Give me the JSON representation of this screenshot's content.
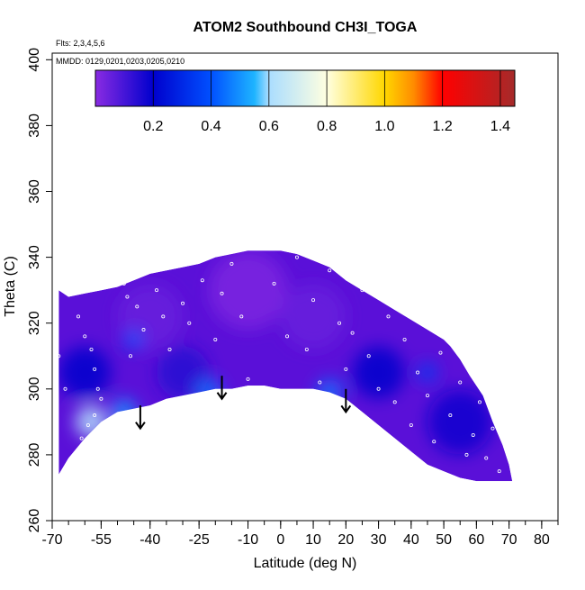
{
  "chart_data": {
    "type": "heatmap",
    "title": "ATOM2 Southbound CH3I_TOGA",
    "annotations": [
      "Flts: 2,3,4,5,6",
      "MMDD: 0129,0201,0203,0205,0210"
    ],
    "xlabel": "Latitude (deg N)",
    "ylabel": "Theta (C)",
    "xlim": [
      -70,
      85
    ],
    "ylim": [
      260,
      402
    ],
    "x_ticks": [
      -70,
      -55,
      -40,
      -25,
      -10,
      0,
      10,
      20,
      30,
      40,
      50,
      60,
      70,
      80
    ],
    "y_ticks": [
      260,
      280,
      300,
      320,
      340,
      360,
      380,
      400
    ],
    "colorbar": {
      "ticks": [
        0.2,
        0.4,
        0.6,
        0.8,
        1.0,
        1.2,
        1.4
      ],
      "tick_labels": [
        "0.2",
        "0.4",
        "0.6",
        "0.8",
        "1.0",
        "1.2",
        "1.4"
      ],
      "range": [
        0.0,
        1.45
      ],
      "stops": [
        {
          "v": 0.0,
          "color": "#8a2be2"
        },
        {
          "v": 0.2,
          "color": "#0000cd"
        },
        {
          "v": 0.4,
          "color": "#0050ff"
        },
        {
          "v": 0.55,
          "color": "#1eb4ff"
        },
        {
          "v": 0.6,
          "color": "#aaddff"
        },
        {
          "v": 0.8,
          "color": "#ffffe0"
        },
        {
          "v": 1.0,
          "color": "#ffd700"
        },
        {
          "v": 1.1,
          "color": "#ff8c00"
        },
        {
          "v": 1.2,
          "color": "#ff0000"
        },
        {
          "v": 1.45,
          "color": "#a52a2a"
        }
      ]
    },
    "field_outline": [
      [
        -68,
        274
      ],
      [
        -65,
        279
      ],
      [
        -60,
        285
      ],
      [
        -55,
        290
      ],
      [
        -50,
        293
      ],
      [
        -45,
        294
      ],
      [
        -40,
        295
      ],
      [
        -35,
        297
      ],
      [
        -30,
        298
      ],
      [
        -25,
        299
      ],
      [
        -20,
        300
      ],
      [
        -15,
        300
      ],
      [
        -10,
        301
      ],
      [
        -5,
        301
      ],
      [
        0,
        300
      ],
      [
        5,
        300
      ],
      [
        10,
        300
      ],
      [
        15,
        299
      ],
      [
        20,
        297
      ],
      [
        25,
        293
      ],
      [
        30,
        289
      ],
      [
        35,
        285
      ],
      [
        40,
        281
      ],
      [
        45,
        277
      ],
      [
        50,
        275
      ],
      [
        55,
        273
      ],
      [
        60,
        272
      ],
      [
        65,
        272
      ],
      [
        71,
        272
      ],
      [
        70,
        277
      ],
      [
        68,
        283
      ],
      [
        65,
        290
      ],
      [
        62,
        298
      ],
      [
        58,
        304
      ],
      [
        55,
        309
      ],
      [
        52,
        313
      ],
      [
        50,
        315
      ],
      [
        45,
        318
      ],
      [
        40,
        321
      ],
      [
        35,
        324
      ],
      [
        30,
        327
      ],
      [
        25,
        330
      ],
      [
        20,
        333
      ],
      [
        15,
        337
      ],
      [
        10,
        339
      ],
      [
        5,
        341
      ],
      [
        0,
        342
      ],
      [
        -5,
        342
      ],
      [
        -10,
        342
      ],
      [
        -15,
        341
      ],
      [
        -20,
        340
      ],
      [
        -25,
        338
      ],
      [
        -30,
        337
      ],
      [
        -35,
        336
      ],
      [
        -40,
        335
      ],
      [
        -45,
        333
      ],
      [
        -50,
        331
      ],
      [
        -55,
        330
      ],
      [
        -60,
        329
      ],
      [
        -65,
        328
      ],
      [
        -68,
        330
      ]
    ],
    "value_blobs": [
      {
        "lat": -40,
        "theta": 322,
        "v": 0.05,
        "r": 10
      },
      {
        "lat": -10,
        "theta": 330,
        "v": 0.02,
        "r": 12
      },
      {
        "lat": 10,
        "theta": 322,
        "v": 0.05,
        "r": 10
      },
      {
        "lat": -60,
        "theta": 305,
        "v": 0.2,
        "r": 8
      },
      {
        "lat": -30,
        "theta": 305,
        "v": 0.15,
        "r": 8
      },
      {
        "lat": 30,
        "theta": 305,
        "v": 0.2,
        "r": 8
      },
      {
        "lat": 55,
        "theta": 290,
        "v": 0.18,
        "r": 10
      },
      {
        "lat": -58,
        "theta": 290,
        "v": 0.62,
        "r": 5
      },
      {
        "lat": -48,
        "theta": 293,
        "v": 0.5,
        "r": 4
      },
      {
        "lat": -22,
        "theta": 299,
        "v": 0.45,
        "r": 4
      },
      {
        "lat": 15,
        "theta": 299,
        "v": 0.45,
        "r": 4
      },
      {
        "lat": 45,
        "theta": 305,
        "v": 0.35,
        "r": 3
      },
      {
        "lat": -45,
        "theta": 315,
        "v": 0.4,
        "r": 3
      }
    ],
    "sample_points": [
      [
        -62,
        322
      ],
      [
        -60,
        316
      ],
      [
        -58,
        312
      ],
      [
        -57,
        306
      ],
      [
        -56,
        300
      ],
      [
        -55,
        297
      ],
      [
        -57,
        292
      ],
      [
        -59,
        289
      ],
      [
        -61,
        285
      ],
      [
        -50,
        336
      ],
      [
        -48,
        332
      ],
      [
        -47,
        328
      ],
      [
        -46,
        310
      ],
      [
        -44,
        325
      ],
      [
        -42,
        318
      ],
      [
        -40,
        338
      ],
      [
        -38,
        330
      ],
      [
        -36,
        322
      ],
      [
        -34,
        312
      ],
      [
        -30,
        326
      ],
      [
        -28,
        320
      ],
      [
        -26,
        345
      ],
      [
        -24,
        333
      ],
      [
        -20,
        315
      ],
      [
        -18,
        329
      ],
      [
        -15,
        338
      ],
      [
        -12,
        322
      ],
      [
        -10,
        303
      ],
      [
        -5,
        349
      ],
      [
        -2,
        332
      ],
      [
        2,
        316
      ],
      [
        5,
        340
      ],
      [
        8,
        312
      ],
      [
        10,
        327
      ],
      [
        12,
        302
      ],
      [
        15,
        336
      ],
      [
        18,
        320
      ],
      [
        20,
        306
      ],
      [
        22,
        317
      ],
      [
        25,
        330
      ],
      [
        27,
        310
      ],
      [
        30,
        300
      ],
      [
        33,
        322
      ],
      [
        35,
        296
      ],
      [
        38,
        315
      ],
      [
        40,
        289
      ],
      [
        42,
        305
      ],
      [
        45,
        298
      ],
      [
        47,
        284
      ],
      [
        49,
        311
      ],
      [
        52,
        292
      ],
      [
        55,
        302
      ],
      [
        57,
        280
      ],
      [
        59,
        286
      ],
      [
        61,
        296
      ],
      [
        63,
        279
      ],
      [
        65,
        288
      ],
      [
        67,
        275
      ],
      [
        -68,
        310
      ],
      [
        -66,
        300
      ]
    ],
    "arrows": [
      {
        "lat": -43,
        "theta_top": 295,
        "theta_tip": 288
      },
      {
        "lat": -18,
        "theta_top": 304,
        "theta_tip": 297
      },
      {
        "lat": 20,
        "theta_top": 300,
        "theta_tip": 293
      }
    ]
  }
}
